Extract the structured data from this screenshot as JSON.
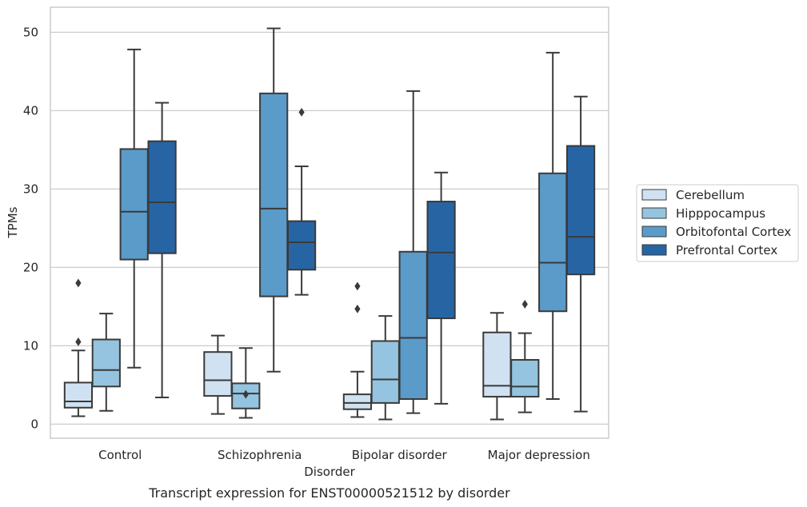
{
  "caption": "Transcript expression for ENST00000521512 by disorder",
  "chart_data": {
    "type": "boxplot",
    "xlabel": "Disorder",
    "ylabel": "TPMs",
    "ylim": [
      -1.8,
      53.2
    ],
    "yticks": [
      0,
      10,
      20,
      30,
      40,
      50
    ],
    "grid": "horizontal",
    "legend_position": "right",
    "categories": [
      "Control",
      "Schizophrenia",
      "Bipolar disorder",
      "Major depression"
    ],
    "series": [
      {
        "name": "Cerebellum",
        "color": "#d0e1f2",
        "boxes": [
          {
            "whisker_low": 1.0,
            "q1": 2.1,
            "median": 2.9,
            "q3": 5.3,
            "whisker_high": 9.4,
            "outliers": [
              10.5,
              18.0
            ]
          },
          {
            "whisker_low": 1.3,
            "q1": 3.6,
            "median": 5.6,
            "q3": 9.2,
            "whisker_high": 11.3,
            "outliers": []
          },
          {
            "whisker_low": 0.9,
            "q1": 1.9,
            "median": 2.7,
            "q3": 3.8,
            "whisker_high": 6.7,
            "outliers": [
              14.7,
              17.6
            ]
          },
          {
            "whisker_low": 0.6,
            "q1": 3.5,
            "median": 4.9,
            "q3": 11.7,
            "whisker_high": 14.2,
            "outliers": []
          }
        ]
      },
      {
        "name": "Hipppocampus",
        "color": "#94c4df",
        "boxes": [
          {
            "whisker_low": 1.7,
            "q1": 4.8,
            "median": 6.9,
            "q3": 10.8,
            "whisker_high": 14.1,
            "outliers": []
          },
          {
            "whisker_low": 0.8,
            "q1": 2.0,
            "median": 3.9,
            "q3": 5.2,
            "whisker_high": 9.7,
            "outliers": [
              3.8
            ]
          },
          {
            "whisker_low": 0.6,
            "q1": 2.7,
            "median": 5.7,
            "q3": 10.6,
            "whisker_high": 13.8,
            "outliers": []
          },
          {
            "whisker_low": 1.5,
            "q1": 3.5,
            "median": 4.8,
            "q3": 8.2,
            "whisker_high": 11.6,
            "outliers": [
              15.3
            ]
          }
        ]
      },
      {
        "name": "Orbitofontal Cortex",
        "color": "#5a9bc9",
        "boxes": [
          {
            "whisker_low": 7.2,
            "q1": 21.0,
            "median": 27.1,
            "q3": 35.1,
            "whisker_high": 47.8,
            "outliers": []
          },
          {
            "whisker_low": 6.7,
            "q1": 16.3,
            "median": 27.5,
            "q3": 42.2,
            "whisker_high": 50.5,
            "outliers": []
          },
          {
            "whisker_low": 1.4,
            "q1": 3.2,
            "median": 11.0,
            "q3": 22.0,
            "whisker_high": 42.5,
            "outliers": []
          },
          {
            "whisker_low": 3.2,
            "q1": 14.4,
            "median": 20.6,
            "q3": 32.0,
            "whisker_high": 47.4,
            "outliers": []
          }
        ]
      },
      {
        "name": "Prefrontal Cortex",
        "color": "#2764a4",
        "boxes": [
          {
            "whisker_low": 3.4,
            "q1": 21.8,
            "median": 28.3,
            "q3": 36.1,
            "whisker_high": 41.0,
            "outliers": []
          },
          {
            "whisker_low": 16.5,
            "q1": 19.7,
            "median": 23.2,
            "q3": 25.9,
            "whisker_high": 32.9,
            "outliers": [
              39.8
            ]
          },
          {
            "whisker_low": 2.6,
            "q1": 13.5,
            "median": 21.9,
            "q3": 28.4,
            "whisker_high": 32.1,
            "outliers": []
          },
          {
            "whisker_low": 1.6,
            "q1": 19.1,
            "median": 23.9,
            "q3": 35.5,
            "whisker_high": 41.8,
            "outliers": []
          }
        ]
      }
    ]
  }
}
